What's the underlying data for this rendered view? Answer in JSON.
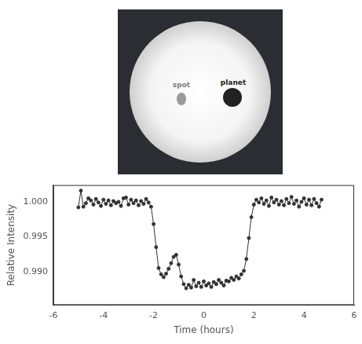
{
  "diagram": {
    "spot_label": "spot",
    "planet_label": "planet"
  },
  "chart_data": {
    "type": "line",
    "marker": "circle",
    "color": "#333333",
    "x_label": "Time (hours)",
    "y_label": "Relative Intensity",
    "x": [
      -5.0,
      -4.9,
      -4.8,
      -4.7,
      -4.6,
      -4.5,
      -4.4,
      -4.3,
      -4.2,
      -4.1,
      -4.0,
      -3.9,
      -3.8,
      -3.7,
      -3.6,
      -3.5,
      -3.4,
      -3.3,
      -3.2,
      -3.1,
      -3.0,
      -2.9,
      -2.8,
      -2.7,
      -2.6,
      -2.5,
      -2.4,
      -2.3,
      -2.2,
      -2.1,
      -2.0,
      -1.9,
      -1.8,
      -1.7,
      -1.6,
      -1.5,
      -1.4,
      -1.3,
      -1.2,
      -1.1,
      -1.0,
      -0.9,
      -0.8,
      -0.7,
      -0.6,
      -0.5,
      -0.4,
      -0.3,
      -0.2,
      -0.1,
      0.0,
      0.1,
      0.2,
      0.3,
      0.4,
      0.5,
      0.6,
      0.7,
      0.8,
      0.9,
      1.0,
      1.1,
      1.2,
      1.3,
      1.4,
      1.5,
      1.6,
      1.7,
      1.8,
      1.9,
      2.0,
      2.1,
      2.2,
      2.3,
      2.4,
      2.5,
      2.6,
      2.7,
      2.8,
      2.9,
      3.0,
      3.1,
      3.2,
      3.3,
      3.4,
      3.5,
      3.6,
      3.7,
      3.8,
      3.9,
      4.0,
      4.1,
      4.2,
      4.3,
      4.4,
      4.5,
      4.6,
      4.7
    ],
    "values": [
      0.9992,
      1.0016,
      0.9993,
      0.9998,
      1.0005,
      1.0002,
      0.9996,
      1.0004,
      0.9999,
      0.9994,
      1.0003,
      0.9997,
      1.0002,
      0.9995,
      1.0001,
      0.9998,
      1.0,
      0.9994,
      1.0005,
      1.0006,
      0.9996,
      1.0003,
      0.9998,
      1.0002,
      0.9995,
      1.0001,
      0.9997,
      1.0004,
      0.9999,
      0.9993,
      0.9968,
      0.9935,
      0.9905,
      0.9896,
      0.9892,
      0.9897,
      0.9904,
      0.9912,
      0.9921,
      0.9924,
      0.991,
      0.9893,
      0.9882,
      0.9876,
      0.9881,
      0.9877,
      0.9888,
      0.9879,
      0.9884,
      0.9878,
      0.9886,
      0.988,
      0.9883,
      0.9878,
      0.9885,
      0.9882,
      0.9888,
      0.9884,
      0.988,
      0.9887,
      0.9886,
      0.9891,
      0.9888,
      0.9893,
      0.989,
      0.9896,
      0.9901,
      0.9918,
      0.9948,
      0.9978,
      0.9996,
      1.0003,
      0.9999,
      1.0005,
      0.9997,
      1.0002,
      0.9994,
      1.0006,
      0.9999,
      1.0003,
      0.9996,
      1.0001,
      0.9995,
      1.0004,
      0.9998,
      1.0007,
      0.9997,
      1.0002,
      0.9993,
      1.0,
      1.0005,
      0.9996,
      1.0003,
      0.9995,
      1.0004,
      0.9998,
      0.9993,
      1.0003
    ],
    "xlim": [
      -6,
      6
    ],
    "xticks": [
      -6,
      -4,
      -2,
      0,
      2,
      4,
      6
    ],
    "ylim": [
      0.9852,
      1.0024
    ],
    "yticks": [
      {
        "value": 0.99,
        "label": "0.990"
      },
      0.995,
      {
        "value": 1.0,
        "label": "1.000"
      }
    ],
    "grid": false
  }
}
